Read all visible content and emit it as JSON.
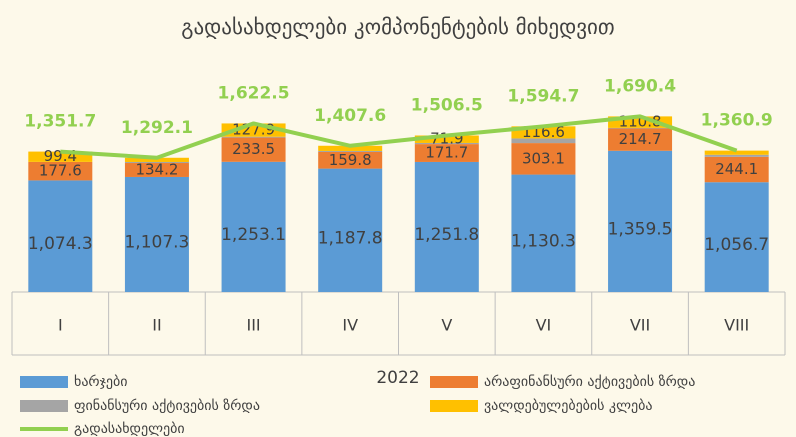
{
  "chart_data": {
    "type": "bar",
    "stacked": true,
    "title": "გადასახდელები კომპონენტების მიხედვით",
    "x_label": "2022",
    "categories": [
      "I",
      "II",
      "III",
      "IV",
      "V",
      "VI",
      "VII",
      "VIII"
    ],
    "ylim": [
      0,
      1800
    ],
    "series": [
      {
        "name": "ხარჯები",
        "color": "#5b9bd5",
        "values": [
          1074.3,
          1107.3,
          1253.1,
          1187.8,
          1251.8,
          1130.3,
          1359.5,
          1056.7
        ],
        "value_labels": [
          "1,074.3",
          "1,107.3",
          "1,253.1",
          "1,187.8",
          "1,251.8",
          "1,130.3",
          "1,359.5",
          "1,056.7"
        ]
      },
      {
        "name": "არაფინანსური აქტივების ზრდა",
        "color": "#ed7d31",
        "values": [
          177.6,
          134.2,
          233.5,
          159.8,
          171.7,
          303.1,
          214.7,
          244.1
        ],
        "value_labels": [
          "177.6",
          "134.2",
          "233.5",
          "159.8",
          "171.7",
          "303.1",
          "214.7",
          "244.1"
        ]
      },
      {
        "name": "ფინანსური აქტივების ზრდა",
        "color": "#a5a5a5",
        "values": [
          0.4,
          10,
          8,
          10,
          11.1,
          44.7,
          5.4,
          20
        ]
      },
      {
        "name": "ვალდებულებების კლება",
        "color": "#ffc000",
        "values": [
          99.4,
          40.6,
          127.9,
          50,
          71.9,
          116.6,
          110.8,
          40.1
        ],
        "value_labels": [
          "99.4",
          null,
          "127.9",
          null,
          "71.9",
          "116.6",
          "110.8",
          null
        ]
      },
      {
        "name": "გადასახდელები",
        "type": "line",
        "color": "#92d050",
        "values": [
          1351.7,
          1292.1,
          1622.5,
          1407.6,
          1506.5,
          1594.7,
          1690.4,
          1360.9
        ],
        "value_labels": [
          "1,351.7",
          "1,292.1",
          "1,622.5",
          "1,407.6",
          "1,506.5",
          "1,594.7",
          "1,690.4",
          "1,360.9"
        ]
      }
    ]
  }
}
